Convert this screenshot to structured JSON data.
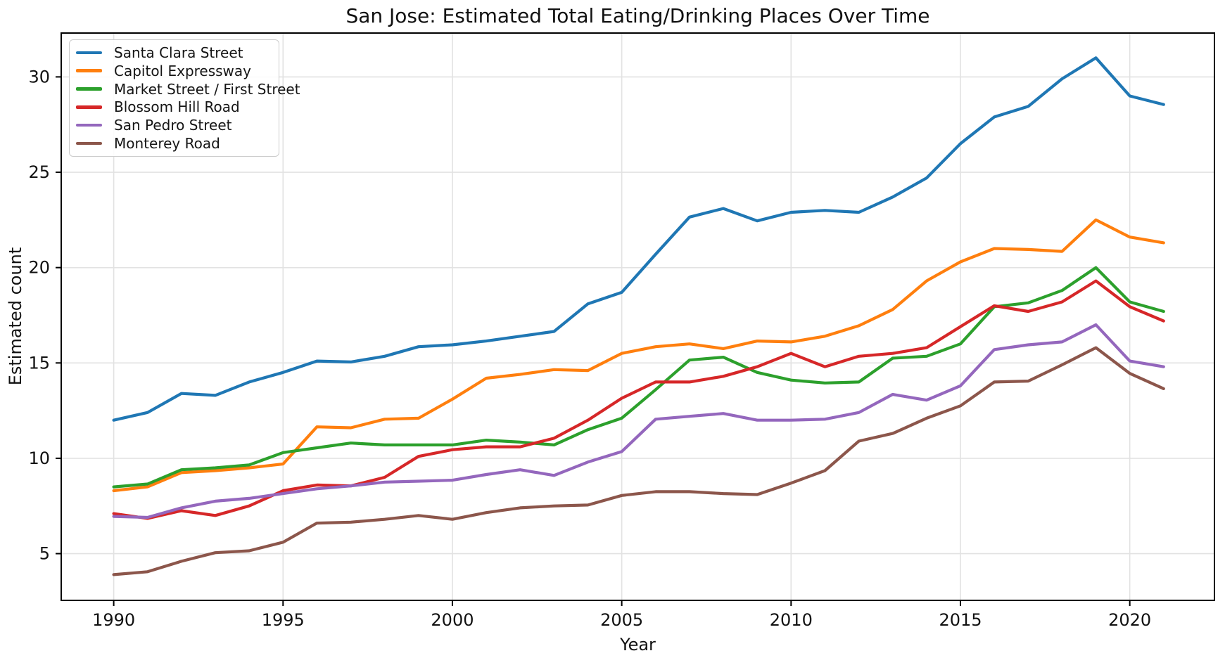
{
  "title": "San Jose: Estimated Total Eating/Drinking Places Over Time",
  "chart_data": {
    "type": "line",
    "title": "San Jose: Estimated Total Eating/Drinking Places Over Time",
    "xlabel": "Year",
    "ylabel": "Estimated count",
    "grid": true,
    "legend_position": "upper-left",
    "xlim": [
      1988.45,
      2022.5
    ],
    "ylim": [
      2.55,
      32.3
    ],
    "xticks": [
      1990,
      1995,
      2000,
      2005,
      2010,
      2015,
      2020
    ],
    "yticks": [
      5,
      10,
      15,
      20,
      25,
      30
    ],
    "x": [
      1990,
      1991,
      1992,
      1993,
      1994,
      1995,
      1996,
      1997,
      1998,
      1999,
      2000,
      2001,
      2002,
      2003,
      2004,
      2005,
      2006,
      2007,
      2008,
      2009,
      2010,
      2011,
      2012,
      2013,
      2014,
      2015,
      2016,
      2017,
      2018,
      2019,
      2020,
      2021
    ],
    "series": [
      {
        "name": "Santa Clara Street",
        "color": "#1f77b4",
        "values": [
          12.0,
          12.4,
          13.4,
          13.3,
          14.0,
          14.5,
          15.1,
          15.05,
          15.35,
          15.85,
          15.95,
          16.15,
          16.4,
          16.65,
          18.1,
          18.7,
          20.7,
          22.65,
          23.1,
          22.45,
          22.9,
          23.0,
          22.9,
          23.7,
          24.7,
          26.5,
          27.9,
          28.45,
          29.9,
          31.0,
          29.0,
          28.55
        ]
      },
      {
        "name": "Capitol Expressway",
        "color": "#ff7f0e",
        "values": [
          8.3,
          8.5,
          9.25,
          9.35,
          9.5,
          9.7,
          11.65,
          11.6,
          12.05,
          12.1,
          13.1,
          14.2,
          14.4,
          14.65,
          14.6,
          15.5,
          15.85,
          16.0,
          15.75,
          16.15,
          16.1,
          16.4,
          16.95,
          17.8,
          19.3,
          20.3,
          21.0,
          20.95,
          20.85,
          22.5,
          21.6,
          21.3
        ]
      },
      {
        "name": "Market Street / First Street",
        "color": "#2ca02c",
        "values": [
          8.5,
          8.65,
          9.4,
          9.5,
          9.65,
          10.3,
          10.55,
          10.8,
          10.7,
          10.7,
          10.7,
          10.95,
          10.85,
          10.7,
          11.5,
          12.1,
          13.6,
          15.15,
          15.3,
          14.5,
          14.1,
          13.95,
          14.0,
          15.25,
          15.35,
          16.0,
          17.95,
          18.15,
          18.8,
          20.0,
          18.2,
          17.7
        ]
      },
      {
        "name": "Blossom Hill Road",
        "color": "#d62728",
        "values": [
          7.1,
          6.85,
          7.25,
          7.0,
          7.5,
          8.3,
          8.6,
          8.55,
          9.0,
          10.1,
          10.45,
          10.6,
          10.6,
          11.05,
          12.0,
          13.15,
          14.0,
          14.0,
          14.3,
          14.8,
          15.5,
          14.8,
          15.35,
          15.5,
          15.8,
          16.9,
          18.0,
          17.7,
          18.2,
          19.3,
          17.95,
          17.2
        ]
      },
      {
        "name": "San Pedro Street",
        "color": "#9467bd",
        "values": [
          6.95,
          6.9,
          7.4,
          7.75,
          7.9,
          8.15,
          8.4,
          8.55,
          8.75,
          8.8,
          8.85,
          9.15,
          9.4,
          9.1,
          9.8,
          10.35,
          12.05,
          12.2,
          12.35,
          12.0,
          12.0,
          12.05,
          12.4,
          13.35,
          13.05,
          13.8,
          15.7,
          15.95,
          16.1,
          17.0,
          15.1,
          14.8
        ]
      },
      {
        "name": "Monterey Road",
        "color": "#8c564b",
        "values": [
          3.9,
          4.05,
          4.6,
          5.05,
          5.15,
          5.6,
          6.6,
          6.65,
          6.8,
          7.0,
          6.8,
          7.15,
          7.4,
          7.5,
          7.55,
          8.05,
          8.25,
          8.25,
          8.15,
          8.1,
          8.7,
          9.35,
          10.9,
          11.3,
          12.1,
          12.75,
          14.0,
          14.05,
          14.9,
          15.8,
          14.45,
          13.65
        ]
      }
    ]
  }
}
